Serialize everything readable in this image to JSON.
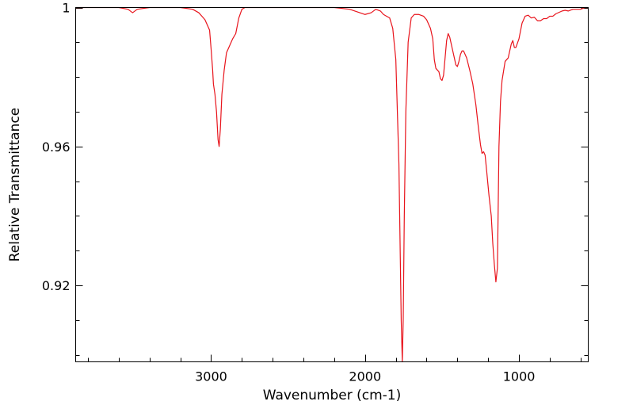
{
  "chart_data": {
    "type": "line",
    "title": "",
    "xlabel": "Wavenumber (cm-1)",
    "ylabel": "Relative Transmittance",
    "xlim": [
      3880,
      550
    ],
    "ylim": [
      0.898,
      1.0
    ],
    "x_reversed": true,
    "grid": false,
    "legend": "none",
    "x_ticks": [
      {
        "value": 3000,
        "label": "3000"
      },
      {
        "value": 2000,
        "label": "2000"
      },
      {
        "value": 1000,
        "label": "1000"
      }
    ],
    "y_ticks": [
      {
        "value": 1.0,
        "label": "1"
      },
      {
        "value": 0.96,
        "label": "0.96"
      },
      {
        "value": 0.92,
        "label": "0.92"
      }
    ],
    "line_color": "#e8141c",
    "series": [
      {
        "x": [
          3880,
          3600,
          3540,
          3510,
          3480,
          3400,
          3200,
          3120,
          3080,
          3040,
          3010,
          3000,
          2990,
          2985,
          2975,
          2965,
          2955,
          2948,
          2940,
          2930,
          2915,
          2900,
          2880,
          2860,
          2840,
          2820,
          2800,
          2780,
          2600,
          2400,
          2200,
          2100,
          2000,
          1960,
          1930,
          1900,
          1880,
          1860,
          1840,
          1820,
          1800,
          1790,
          1780,
          1775,
          1770,
          1765,
          1758,
          1752,
          1745,
          1735,
          1720,
          1700,
          1680,
          1650,
          1620,
          1600,
          1590,
          1575,
          1560,
          1550,
          1540,
          1520,
          1510,
          1500,
          1490,
          1480,
          1470,
          1460,
          1450,
          1440,
          1425,
          1410,
          1400,
          1390,
          1380,
          1370,
          1360,
          1340,
          1320,
          1300,
          1280,
          1265,
          1250,
          1240,
          1230,
          1220,
          1210,
          1195,
          1180,
          1170,
          1160,
          1150,
          1140,
          1130,
          1120,
          1110,
          1090,
          1070,
          1060,
          1050,
          1040,
          1030,
          1020,
          1000,
          980,
          960,
          940,
          920,
          900,
          880,
          860,
          840,
          820,
          800,
          780,
          760,
          720,
          700,
          680,
          650,
          600,
          570,
          550
        ],
        "y": [
          1.0,
          1.0,
          0.9995,
          0.9985,
          0.9995,
          1.0,
          1.0,
          0.9995,
          0.9985,
          0.9965,
          0.9935,
          0.988,
          0.982,
          0.978,
          0.975,
          0.97,
          0.962,
          0.96,
          0.965,
          0.975,
          0.982,
          0.987,
          0.989,
          0.991,
          0.9925,
          0.997,
          0.9995,
          1.0,
          1.0,
          1.0,
          1.0,
          0.9995,
          0.998,
          0.9985,
          0.9995,
          0.999,
          0.998,
          0.9975,
          0.997,
          0.994,
          0.985,
          0.97,
          0.955,
          0.94,
          0.925,
          0.91,
          0.898,
          0.91,
          0.94,
          0.97,
          0.99,
          0.997,
          0.998,
          0.998,
          0.9975,
          0.9965,
          0.9955,
          0.994,
          0.991,
          0.985,
          0.9825,
          0.9815,
          0.9795,
          0.979,
          0.9805,
          0.9855,
          0.9905,
          0.9925,
          0.9915,
          0.9895,
          0.9865,
          0.9835,
          0.983,
          0.9845,
          0.9865,
          0.9875,
          0.9875,
          0.9855,
          0.982,
          0.978,
          0.972,
          0.966,
          0.9605,
          0.958,
          0.9585,
          0.9575,
          0.953,
          0.946,
          0.94,
          0.932,
          0.926,
          0.921,
          0.925,
          0.96,
          0.973,
          0.979,
          0.9845,
          0.9855,
          0.9875,
          0.9895,
          0.9905,
          0.9885,
          0.9885,
          0.991,
          0.9955,
          0.9975,
          0.9978,
          0.997,
          0.9972,
          0.9962,
          0.9962,
          0.9968,
          0.9968,
          0.9975,
          0.9975,
          0.9982,
          0.999,
          0.9992,
          0.999,
          0.9995,
          0.9995,
          1.0,
          1.0
        ]
      }
    ]
  }
}
